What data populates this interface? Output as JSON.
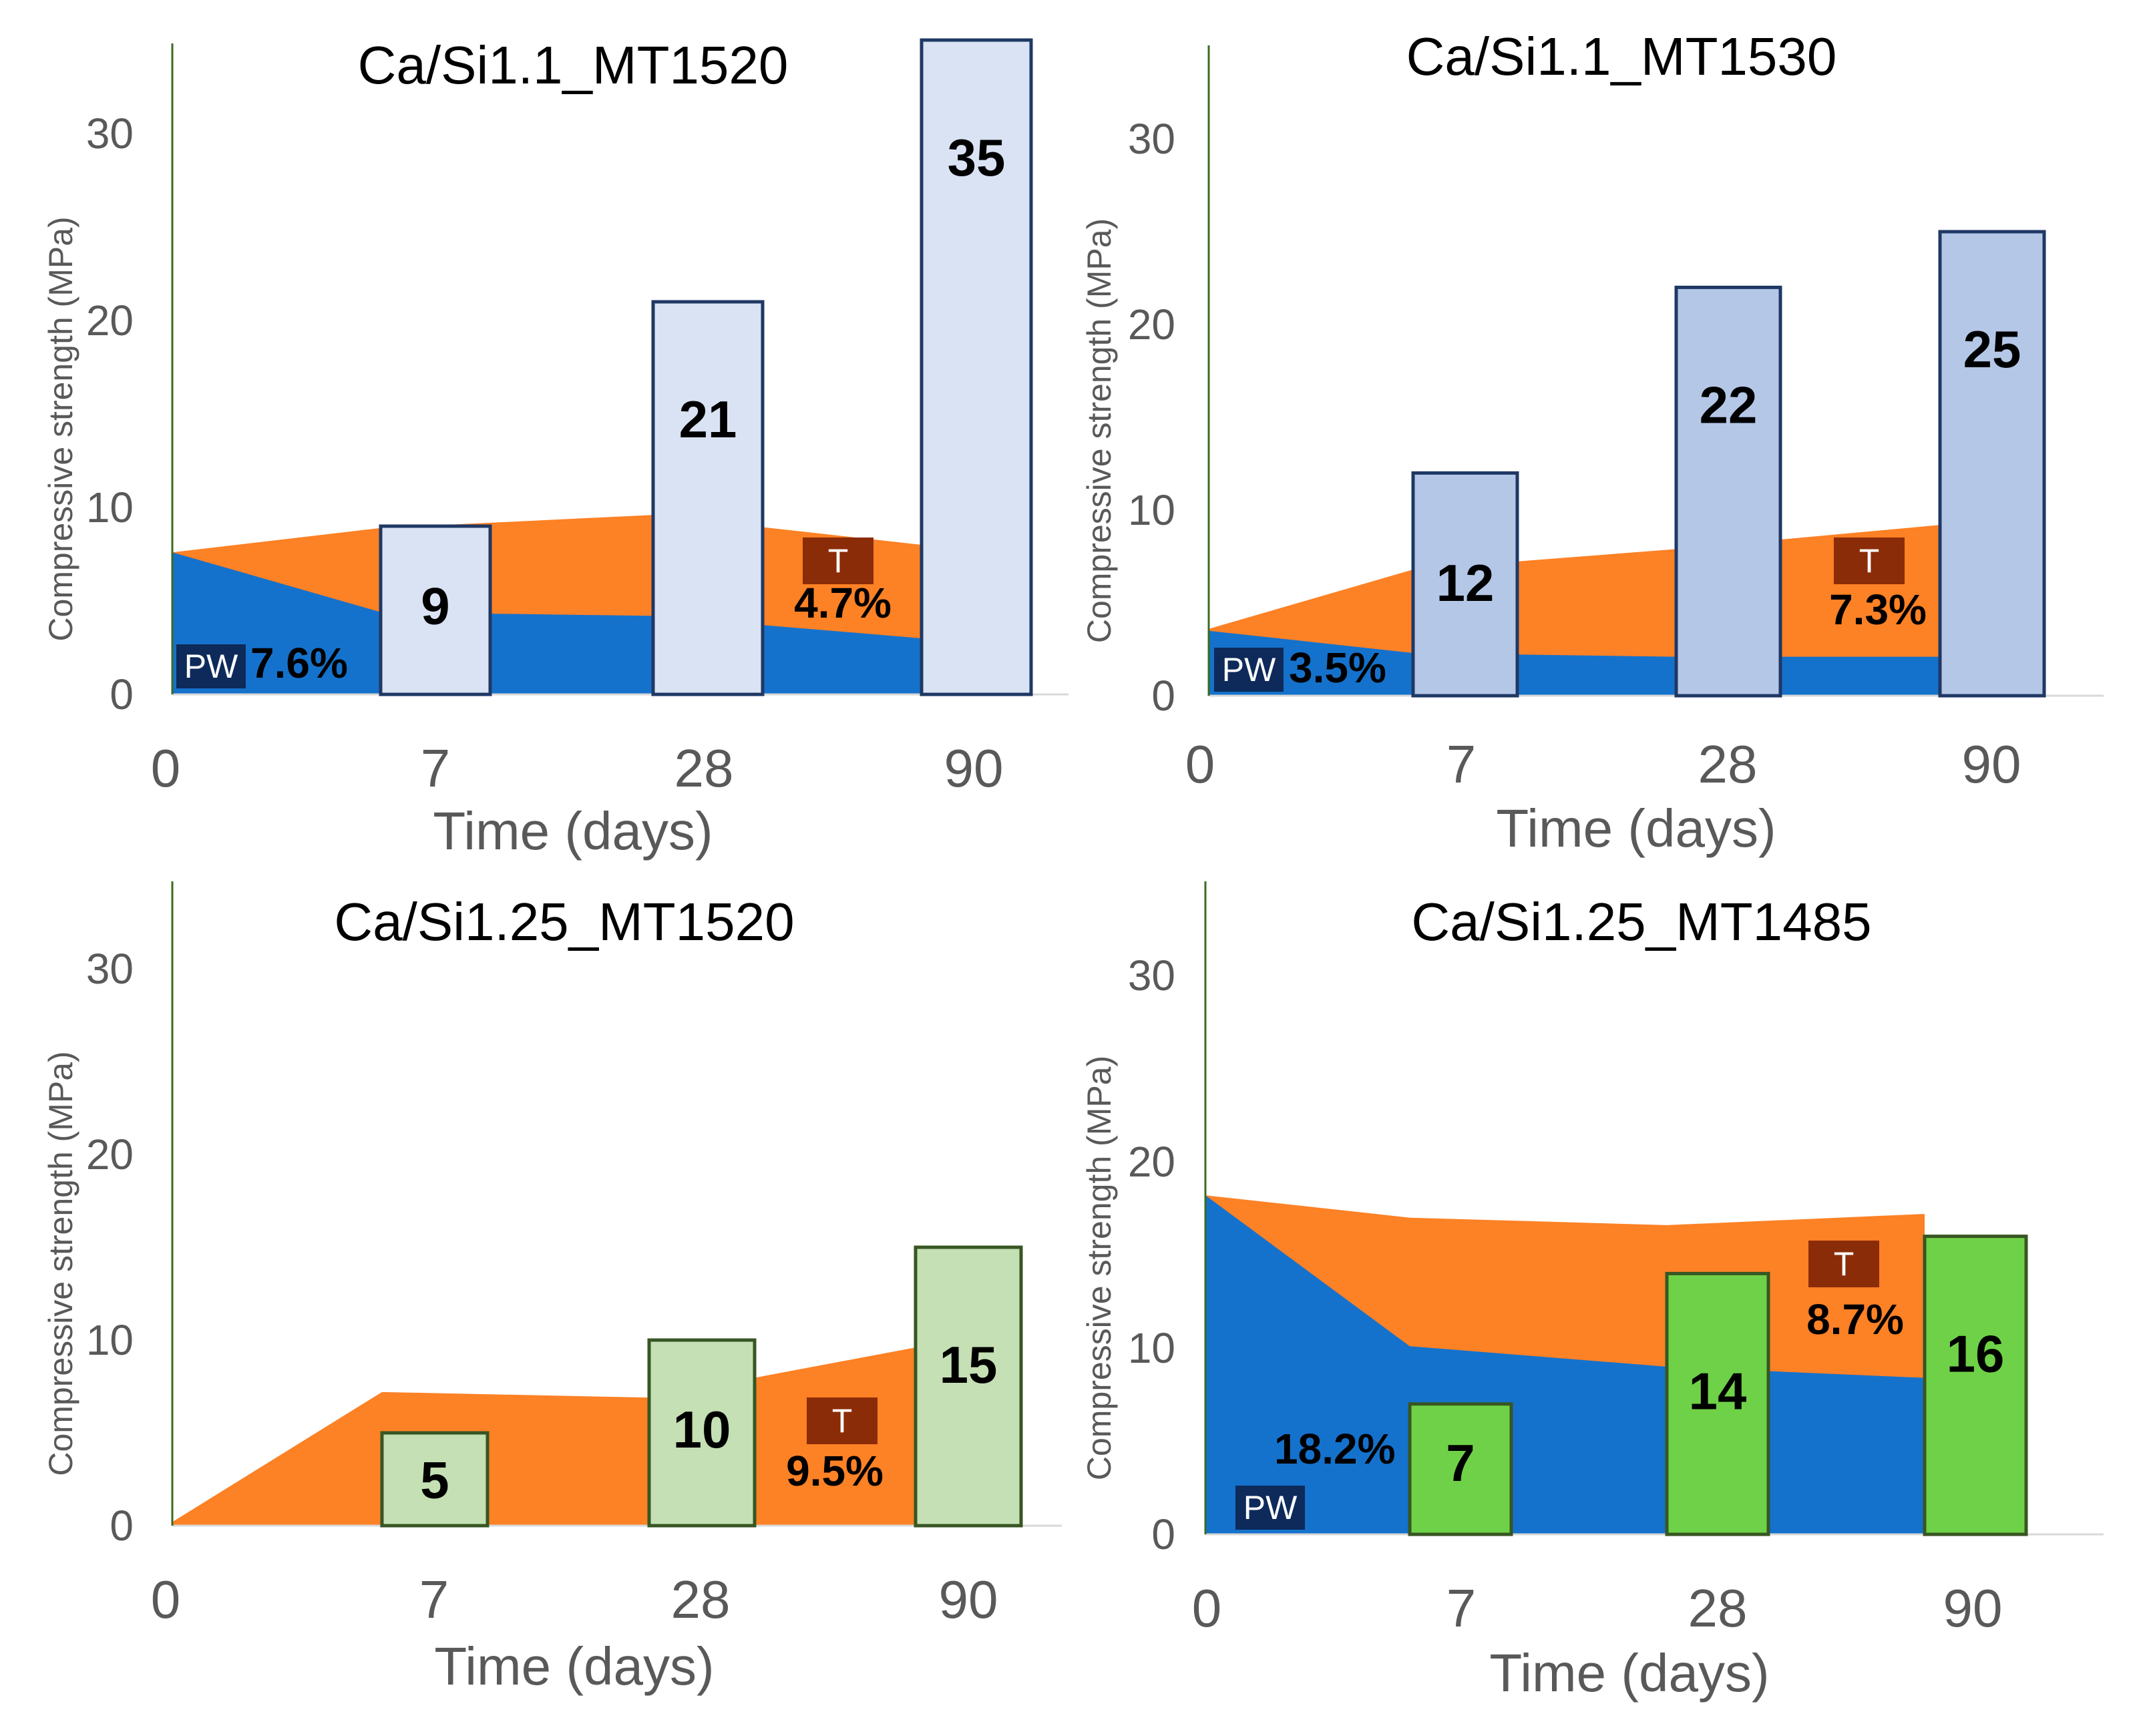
{
  "chart_data": [
    {
      "type": "bar",
      "title": "Ca/Si1.1_MT1520",
      "xlabel": "Time (days)",
      "ylabel": "Compressive strength (MPa)",
      "x_ticks": [
        "0",
        "7",
        "28",
        "90"
      ],
      "categories": [
        "7",
        "28",
        "90"
      ],
      "values": [
        9,
        21,
        35
      ],
      "value_labels": [
        "9",
        "21",
        "35"
      ],
      "ylim": [
        0,
        36
      ],
      "y_ticks": [
        "0",
        "10",
        "20",
        "30"
      ],
      "bar_fill": "#dae3f3",
      "bar_stroke": "#1f3864",
      "area": {
        "total": [
          7.6,
          8.9,
          9.6,
          8.0
        ],
        "pw": [
          7.6,
          4.4,
          4.2,
          3.0
        ]
      },
      "pw_badge": "PW",
      "pw_value": "7.6%",
      "t_badge": "T",
      "t_value": "4.7%"
    },
    {
      "type": "bar",
      "title": "Ca/Si1.1_MT1530",
      "xlabel": "Time (days)",
      "ylabel": "Compressive strength (MPa)",
      "x_ticks": [
        "0",
        "7",
        "28",
        "90"
      ],
      "categories": [
        "7",
        "28",
        "90"
      ],
      "values": [
        12,
        22,
        25
      ],
      "value_labels": [
        "12",
        "22",
        "25"
      ],
      "ylim": [
        0,
        36
      ],
      "y_ticks": [
        "0",
        "10",
        "20",
        "30"
      ],
      "bar_fill": "#b4c7e7",
      "bar_stroke": "#1f3864",
      "area": {
        "total": [
          3.6,
          6.8,
          7.9,
          9.2
        ],
        "pw": [
          3.5,
          2.3,
          2.1,
          2.1
        ]
      },
      "pw_badge": "PW",
      "pw_value": "3.5%",
      "t_badge": "T",
      "t_value": "7.3%"
    },
    {
      "type": "bar",
      "title": "Ca/Si1.25_MT1520",
      "xlabel": "Time (days)",
      "ylabel": "Compressive strength (MPa)",
      "x_ticks": [
        "0",
        "7",
        "28",
        "90"
      ],
      "categories": [
        "7",
        "28",
        "90"
      ],
      "values": [
        5,
        10,
        15
      ],
      "value_labels": [
        "5",
        "10",
        "15"
      ],
      "ylim": [
        0,
        36
      ],
      "y_ticks": [
        "0",
        "10",
        "20",
        "30"
      ],
      "bar_fill": "#c5e0b4",
      "bar_stroke": "#375623",
      "area": {
        "total": [
          0.2,
          7.2,
          6.9,
          9.6
        ],
        "pw": [
          0,
          0,
          0,
          0
        ]
      },
      "t_badge": "T",
      "t_value": "9.5%"
    },
    {
      "type": "bar",
      "title": "Ca/Si1.25_MT1485",
      "xlabel": "Time (days)",
      "ylabel": "Compressive strength (MPa)",
      "x_ticks": [
        "0",
        "7",
        "28",
        "90"
      ],
      "categories": [
        "7",
        "28",
        "90"
      ],
      "values": [
        7,
        14,
        16
      ],
      "value_labels": [
        "7",
        "14",
        "16"
      ],
      "ylim": [
        0,
        36
      ],
      "y_ticks": [
        "0",
        "10",
        "20",
        "30"
      ],
      "bar_fill": "#6fd147",
      "bar_stroke": "#375623",
      "area": {
        "total": [
          18.2,
          17.0,
          16.6,
          17.2
        ],
        "pw": [
          18.2,
          10.1,
          9.0,
          8.4
        ]
      },
      "pw_badge": "PW",
      "pw_value": "18.2%",
      "t_badge": "T",
      "t_value": "8.7%"
    }
  ],
  "colors": {
    "t_area": "#fd8125",
    "pw_area": "#1572cc",
    "pw_badge": "#0d2a5a",
    "t_badge": "#8b2c08",
    "axis_left": "#3a6b1f",
    "axis_bottom": "#d9d9d9"
  }
}
